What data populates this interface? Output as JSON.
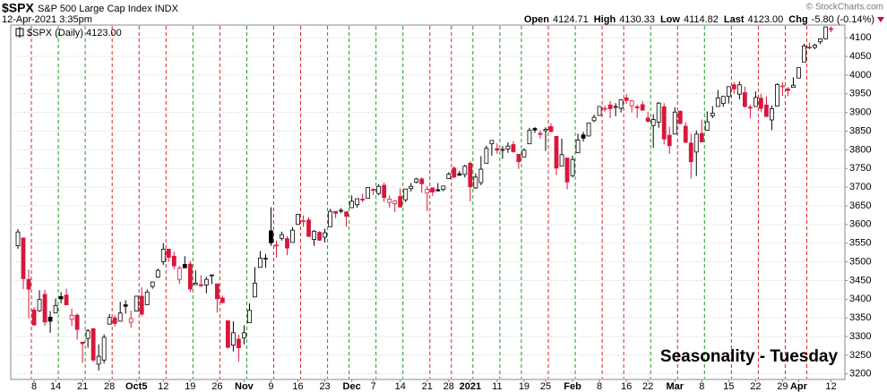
{
  "chart_data": {
    "type": "candlestick",
    "title": "$SPX",
    "subtitle": "S&P 500 Large Cap Index INDX",
    "date": "12-Apr-2021 3:35pm",
    "source": "© StockCharts.com",
    "quote": [
      {
        "label": "Open",
        "value": "4124.71"
      },
      {
        "label": "High",
        "value": "4130.33"
      },
      {
        "label": "Low",
        "value": "4114.82"
      },
      {
        "label": "Last",
        "value": "4123.00"
      },
      {
        "label": "Chg",
        "value": "-5.80 (-0.14%)"
      }
    ],
    "annotation": "Seasonality - Tuesday",
    "grid": true,
    "up_color": "#000000",
    "down_color": "#d9163c",
    "seasonal_up_color": "#1a9a1a",
    "seasonal_down_color": "#e0201f",
    "annotation_color": "#1330d0",
    "ylim": [
      3185,
      4134
    ],
    "yticks": [
      3200,
      3250,
      3300,
      3350,
      3400,
      3450,
      3500,
      3550,
      3600,
      3650,
      3700,
      3750,
      3800,
      3850,
      3900,
      3950,
      4000,
      4050,
      4100
    ],
    "categories": [
      null,
      null,
      null,
      "8",
      null,
      null,
      null,
      "14",
      null,
      null,
      null,
      null,
      "21",
      null,
      null,
      null,
      null,
      "28",
      null,
      null,
      null,
      null,
      "Oct5",
      null,
      null,
      null,
      null,
      "12",
      null,
      null,
      null,
      null,
      "19",
      null,
      null,
      null,
      null,
      "26",
      null,
      null,
      null,
      null,
      "Nov",
      null,
      null,
      null,
      null,
      "9",
      null,
      null,
      null,
      null,
      "16",
      null,
      null,
      null,
      null,
      "23",
      null,
      null,
      null,
      null,
      "Dec",
      null,
      null,
      null,
      "7",
      null,
      null,
      null,
      null,
      "14",
      null,
      null,
      null,
      null,
      "21",
      null,
      null,
      null,
      "28",
      null,
      null,
      null,
      "2021",
      null,
      null,
      null,
      null,
      "11",
      null,
      null,
      null,
      null,
      "19",
      null,
      null,
      null,
      "25",
      null,
      null,
      null,
      null,
      "Feb",
      null,
      null,
      null,
      null,
      "8",
      null,
      null,
      null,
      null,
      "16",
      null,
      null,
      null,
      "22",
      null,
      null,
      null,
      null,
      "Mar",
      null,
      null,
      null,
      null,
      "8",
      null,
      null,
      null,
      null,
      "15",
      null,
      null,
      null,
      null,
      "22",
      null,
      null,
      null,
      null,
      "29",
      null,
      null,
      "Apr",
      null,
      null,
      null,
      null,
      null,
      "12"
    ],
    "series": [
      {
        "name": "$SPX (Daily) 4123.00",
        "open": [
          3543,
          3564,
          3453,
          3371,
          3369,
          3413,
          3352,
          3363,
          3407,
          3411,
          3346,
          3357,
          3285,
          3295,
          3321,
          3226,
          3237,
          3333,
          3350,
          3341,
          3385,
          3338,
          3368,
          3408,
          3385,
          3434,
          3459,
          3500,
          3534,
          3515,
          3453,
          3493,
          3494,
          3439,
          3439,
          3438,
          3464,
          3441,
          3403,
          3342,
          3277,
          3293,
          3296,
          3337,
          3406,
          3485,
          3508,
          3583,
          3543,
          3563,
          3562,
          3552,
          3600,
          3610,
          3612,
          3560,
          3579,
          3566,
          3594,
          3635,
          3638,
          3634,
          3645,
          3653,
          3668,
          3670,
          3694,
          3683,
          3705,
          3659,
          3656,
          3675,
          3666,
          3696,
          3713,
          3722,
          3684,
          3698,
          3693,
          3694,
          3723,
          3751,
          3736,
          3734,
          3764,
          3698,
          3712,
          3764,
          3816,
          3803,
          3801,
          3802,
          3814,
          3788,
          3781,
          3816,
          3857,
          3844,
          3851,
          3862,
          3836,
          3756,
          3778,
          3731,
          3792,
          3840,
          3837,
          3878,
          3892,
          3910,
          3920,
          3916,
          3911,
          3939,
          3918,
          3915,
          3921,
          3885,
          3865,
          3874,
          3915,
          3839,
          3842,
          3903,
          3863,
          3818,
          3794,
          3844,
          3852,
          3891,
          3916,
          3924,
          3943,
          3974,
          3949,
          3953,
          3914,
          3916,
          3938,
          3920,
          3880,
          3917,
          3969,
          3963,
          3967,
          3992,
          4035,
          4075,
          4074,
          4089,
          4097,
          4124.71
        ],
        "high": [
          3588,
          3564,
          3479,
          3379,
          3424,
          3425,
          3368,
          3402,
          3419,
          3428,
          3375,
          3362,
          3285,
          3320,
          3323,
          3279,
          3306,
          3360,
          3357,
          3393,
          3397,
          3369,
          3409,
          3432,
          3426,
          3447,
          3482,
          3550,
          3534,
          3527,
          3489,
          3515,
          3502,
          3477,
          3464,
          3460,
          3466,
          3441,
          3409,
          3342,
          3341,
          3305,
          3330,
          3389,
          3486,
          3529,
          3521,
          3646,
          3557,
          3581,
          3569,
          3593,
          3628,
          3624,
          3619,
          3585,
          3582,
          3589,
          3642,
          3635,
          3644,
          3634,
          3678,
          3670,
          3682,
          3699,
          3697,
          3708,
          3712,
          3678,
          3665,
          3697,
          3695,
          3711,
          3725,
          3726,
          3702,
          3698,
          3711,
          3703,
          3740,
          3756,
          3744,
          3760,
          3769,
          3737,
          3783,
          3811,
          3826,
          3817,
          3810,
          3820,
          3823,
          3788,
          3804,
          3859,
          3861,
          3852,
          3860,
          3871,
          3836,
          3830,
          3778,
          3784,
          3843,
          3848,
          3872,
          3894,
          3916,
          3918,
          3931,
          3925,
          3935,
          3950,
          3933,
          3921,
          3931,
          3902,
          3895,
          3928,
          3925,
          3862,
          3914,
          3906,
          3874,
          3843,
          3852,
          3881,
          3903,
          3917,
          3960,
          3944,
          3970,
          3981,
          3983,
          3969,
          3921,
          3956,
          3950,
          3943,
          3919,
          3978,
          3981,
          3968,
          3994,
          4020,
          4084,
          4087,
          4084,
          4098,
          4129,
          4130.33
        ],
        "low": [
          3535,
          3427,
          3349,
          3329,
          3366,
          3329,
          3310,
          3363,
          3389,
          3384,
          3328,
          3292,
          3229,
          3270,
          3232,
          3209,
          3228,
          3333,
          3327,
          3340,
          3361,
          3323,
          3367,
          3354,
          3385,
          3428,
          3457,
          3492,
          3500,
          3480,
          3441,
          3483,
          3419,
          3439,
          3433,
          3416,
          3440,
          3364,
          3388,
          3268,
          3260,
          3233,
          3279,
          3336,
          3405,
          3485,
          3484,
          3543,
          3511,
          3557,
          3518,
          3552,
          3600,
          3594,
          3567,
          3543,
          3556,
          3552,
          3594,
          3617,
          3630,
          3594,
          3645,
          3645,
          3660,
          3670,
          3679,
          3678,
          3660,
          3645,
          3633,
          3645,
          3660,
          3688,
          3710,
          3685,
          3636,
          3676,
          3689,
          3689,
          3723,
          3723,
          3730,
          3726,
          3662,
          3695,
          3705,
          3764,
          3784,
          3789,
          3776,
          3792,
          3792,
          3749,
          3780,
          3816,
          3845,
          3830,
          3797,
          3847,
          3732,
          3756,
          3694,
          3726,
          3792,
          3822,
          3836,
          3874,
          3892,
          3902,
          3885,
          3890,
          3900,
          3923,
          3900,
          3885,
          3905,
          3874,
          3805,
          3859,
          3814,
          3789,
          3842,
          3869,
          3818,
          3723,
          3730,
          3821,
          3852,
          3885,
          3916,
          3915,
          3924,
          3950,
          3935,
          3913,
          3884,
          3916,
          3902,
          3889,
          3853,
          3917,
          3944,
          3944,
          3966,
          3992,
          4035,
          4069,
          4069,
          4083,
          4096,
          4114.82
        ],
        "close": [
          3580,
          3455,
          3427,
          3331,
          3399,
          3339,
          3341,
          3383,
          3401,
          3385,
          3357,
          3319,
          3281,
          3315,
          3237,
          3247,
          3298,
          3351,
          3335,
          3363,
          3381,
          3348,
          3408,
          3360,
          3419,
          3446,
          3477,
          3534,
          3512,
          3489,
          3483,
          3484,
          3427,
          3443,
          3436,
          3453,
          3465,
          3401,
          3391,
          3271,
          3310,
          3270,
          3310,
          3370,
          3443,
          3510,
          3510,
          3551,
          3545,
          3573,
          3537,
          3585,
          3627,
          3610,
          3568,
          3582,
          3558,
          3578,
          3635,
          3630,
          3638,
          3622,
          3662,
          3669,
          3666,
          3699,
          3692,
          3702,
          3672,
          3668,
          3663,
          3647,
          3695,
          3702,
          3722,
          3709,
          3694,
          3687,
          3690,
          3703,
          3735,
          3727,
          3732,
          3756,
          3701,
          3727,
          3748,
          3804,
          3825,
          3799,
          3801,
          3810,
          3795,
          3768,
          3799,
          3852,
          3853,
          3841,
          3855,
          3849,
          3751,
          3787,
          3714,
          3774,
          3826,
          3831,
          3872,
          3887,
          3916,
          3911,
          3910,
          3916,
          3934,
          3932,
          3931,
          3914,
          3906,
          3876,
          3881,
          3925,
          3829,
          3811,
          3901,
          3870,
          3820,
          3768,
          3842,
          3821,
          3875,
          3898,
          3939,
          3943,
          3969,
          3963,
          3974,
          3916,
          3913,
          3940,
          3911,
          3889,
          3910,
          3975,
          3971,
          3959,
          3973,
          4020,
          4078,
          4074,
          4080,
          4097,
          4129,
          4123
        ]
      }
    ]
  }
}
